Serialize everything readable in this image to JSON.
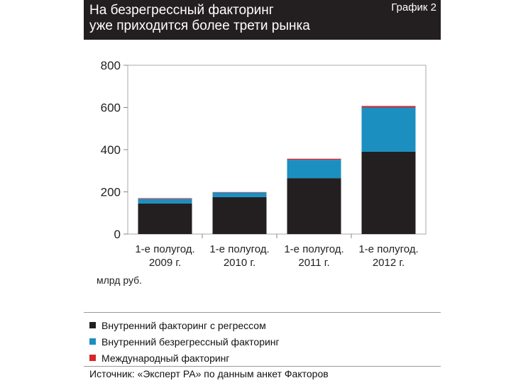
{
  "header": {
    "title": "На безрегрессный факторинг\nуже приходится более трети рынка",
    "label": "График 2"
  },
  "colors": {
    "header_bg": "#231f20",
    "recourse": "#231f20",
    "non_recourse": "#1b8fc0",
    "international": "#d7262e"
  },
  "chart_data": {
    "type": "bar",
    "stacked": true,
    "categories": [
      [
        "1-е полугод.",
        "2009 г."
      ],
      [
        "1-е полугод.",
        "2010 г."
      ],
      [
        "1-е полугод.",
        "2011 г."
      ],
      [
        "1-е полугод.",
        "2012 г."
      ]
    ],
    "series": [
      {
        "name": "Внутренний факторинг с регрессом",
        "color": "#231f20",
        "values": [
          145,
          175,
          265,
          390
        ]
      },
      {
        "name": "Внутренний безрегрессный факторинг",
        "color": "#1b8fc0",
        "values": [
          22,
          22,
          87,
          210
        ]
      },
      {
        "name": "Международный факторинг",
        "color": "#d7262e",
        "values": [
          3,
          2,
          5,
          7
        ]
      }
    ],
    "y_ticks": [
      0,
      200,
      400,
      600,
      800
    ],
    "ylim": [
      0,
      800
    ],
    "ylabel": "млрд руб.",
    "grid": false,
    "legend_position": "bottom"
  },
  "source": "Источник: «Эксперт РА» по данным анкет Факторов"
}
